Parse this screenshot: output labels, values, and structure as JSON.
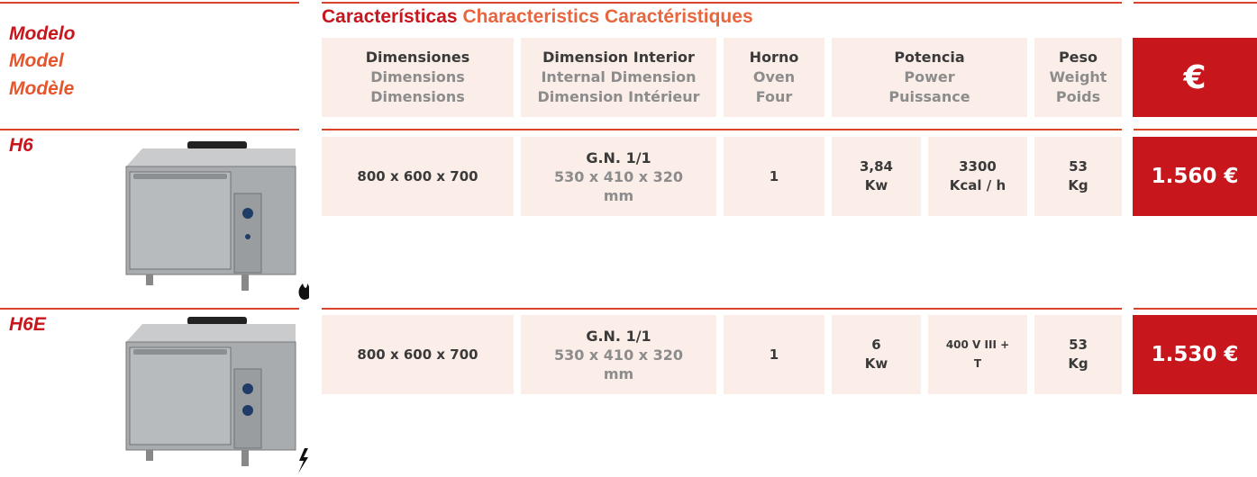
{
  "header": {
    "model": [
      "Modelo",
      "Model",
      "Modèle"
    ],
    "characteristics": [
      "Características",
      "Characteristics",
      "Caractéristiques"
    ],
    "columns": [
      [
        "Dimensiones",
        "Dimensions",
        "Dimensions"
      ],
      [
        "Dimension Interior",
        "Internal Dimension",
        "Dimension Intérieur"
      ],
      [
        "Horno",
        "Oven",
        "Four"
      ],
      [
        "Potencia",
        "Power",
        "Puissance"
      ],
      [
        "Peso",
        "Weight",
        "Poids"
      ]
    ],
    "currency": "€"
  },
  "rows": [
    {
      "model": "H6",
      "dimensions": "800 x 600 x 700",
      "interior": [
        "G.N. 1/1",
        "530 x 410 x 320 mm"
      ],
      "oven": "1",
      "power": [
        "3,84",
        "Kw"
      ],
      "power_alt": [
        "3300",
        "Kcal / h"
      ],
      "weight": [
        "53",
        "Kg"
      ],
      "price": "1.560 €"
    },
    {
      "model": "H6E",
      "dimensions": "800 x 600 x 700",
      "interior": [
        "G.N. 1/1",
        "530 x 410 x 320 mm"
      ],
      "oven": "1",
      "power": [
        "6",
        "Kw"
      ],
      "power_alt": [
        "400 V III + T"
      ],
      "weight": [
        "53",
        "Kg"
      ],
      "price": "1.530 €"
    }
  ]
}
